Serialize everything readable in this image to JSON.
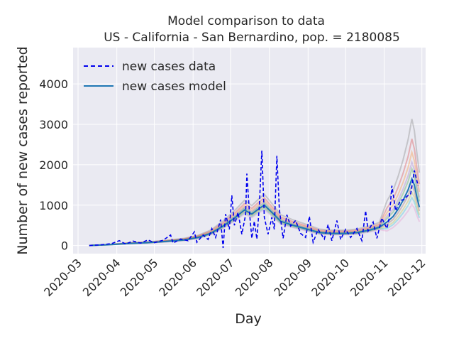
{
  "chart_data": {
    "type": "line",
    "title": "Model comparison to data",
    "subtitle": "US - California - San Bernardino, pop. = 2180085",
    "xlabel": "Day",
    "ylabel": "Number of new cases reported",
    "x_range": [
      "2020-02-26",
      "2020-12-04"
    ],
    "ylim": [
      -200,
      4900
    ],
    "grid": true,
    "legend_position": "top-left",
    "x_ticks": [
      "2020-03",
      "2020-04",
      "2020-05",
      "2020-06",
      "2020-07",
      "2020-08",
      "2020-09",
      "2020-10",
      "2020-11",
      "2020-12"
    ],
    "y_ticks": [
      0,
      1000,
      2000,
      3000,
      4000
    ],
    "series": [
      {
        "name": "new cases data",
        "style": "dashed",
        "color": "#0000ee",
        "points": [
          [
            "2020-03-10",
            0
          ],
          [
            "2020-03-20",
            20
          ],
          [
            "2020-03-28",
            50
          ],
          [
            "2020-04-03",
            120
          ],
          [
            "2020-04-08",
            40
          ],
          [
            "2020-04-14",
            110
          ],
          [
            "2020-04-20",
            60
          ],
          [
            "2020-04-26",
            140
          ],
          [
            "2020-05-01",
            70
          ],
          [
            "2020-05-08",
            130
          ],
          [
            "2020-05-14",
            260
          ],
          [
            "2020-05-16",
            60
          ],
          [
            "2020-05-22",
            160
          ],
          [
            "2020-05-28",
            120
          ],
          [
            "2020-06-02",
            340
          ],
          [
            "2020-06-04",
            80
          ],
          [
            "2020-06-09",
            260
          ],
          [
            "2020-06-13",
            150
          ],
          [
            "2020-06-16",
            420
          ],
          [
            "2020-06-19",
            200
          ],
          [
            "2020-06-23",
            640
          ],
          [
            "2020-06-25",
            -60
          ],
          [
            "2020-06-27",
            780
          ],
          [
            "2020-06-30",
            400
          ],
          [
            "2020-07-02",
            1240
          ],
          [
            "2020-07-04",
            500
          ],
          [
            "2020-07-07",
            820
          ],
          [
            "2020-07-10",
            280
          ],
          [
            "2020-07-13",
            760
          ],
          [
            "2020-07-14",
            1780
          ],
          [
            "2020-07-16",
            850
          ],
          [
            "2020-07-18",
            180
          ],
          [
            "2020-07-20",
            600
          ],
          [
            "2020-07-22",
            160
          ],
          [
            "2020-07-24",
            980
          ],
          [
            "2020-07-26",
            2350
          ],
          [
            "2020-07-28",
            700
          ],
          [
            "2020-07-31",
            280
          ],
          [
            "2020-08-03",
            700
          ],
          [
            "2020-08-05",
            400
          ],
          [
            "2020-08-07",
            2220
          ],
          [
            "2020-08-09",
            900
          ],
          [
            "2020-08-12",
            180
          ],
          [
            "2020-08-15",
            760
          ],
          [
            "2020-08-18",
            480
          ],
          [
            "2020-08-22",
            620
          ],
          [
            "2020-08-26",
            300
          ],
          [
            "2020-08-30",
            200
          ],
          [
            "2020-09-02",
            720
          ],
          [
            "2020-09-05",
            80
          ],
          [
            "2020-09-09",
            400
          ],
          [
            "2020-09-14",
            160
          ],
          [
            "2020-09-17",
            520
          ],
          [
            "2020-09-20",
            120
          ],
          [
            "2020-09-24",
            620
          ],
          [
            "2020-09-27",
            150
          ],
          [
            "2020-10-01",
            400
          ],
          [
            "2020-10-05",
            200
          ],
          [
            "2020-10-10",
            420
          ],
          [
            "2020-10-14",
            120
          ],
          [
            "2020-10-17",
            860
          ],
          [
            "2020-10-19",
            360
          ],
          [
            "2020-10-23",
            580
          ],
          [
            "2020-10-26",
            180
          ],
          [
            "2020-10-30",
            680
          ],
          [
            "2020-11-03",
            420
          ],
          [
            "2020-11-05",
            700
          ],
          [
            "2020-11-07",
            1480
          ],
          [
            "2020-11-10",
            860
          ],
          [
            "2020-11-14",
            1120
          ],
          [
            "2020-11-17",
            1140
          ],
          [
            "2020-11-19",
            1220
          ],
          [
            "2020-11-22",
            1280
          ],
          [
            "2020-11-25",
            1860
          ],
          [
            "2020-11-28",
            1480
          ]
        ]
      },
      {
        "name": "new cases model",
        "style": "solid",
        "color": "#1f77b4",
        "points": [
          [
            "2020-03-10",
            0
          ],
          [
            "2020-03-25",
            20
          ],
          [
            "2020-04-10",
            50
          ],
          [
            "2020-04-25",
            70
          ],
          [
            "2020-05-10",
            100
          ],
          [
            "2020-05-25",
            140
          ],
          [
            "2020-06-05",
            200
          ],
          [
            "2020-06-15",
            300
          ],
          [
            "2020-06-25",
            480
          ],
          [
            "2020-07-05",
            700
          ],
          [
            "2020-07-12",
            880
          ],
          [
            "2020-07-18",
            780
          ],
          [
            "2020-07-24",
            920
          ],
          [
            "2020-07-28",
            1000
          ],
          [
            "2020-08-03",
            820
          ],
          [
            "2020-08-10",
            600
          ],
          [
            "2020-08-20",
            500
          ],
          [
            "2020-09-01",
            400
          ],
          [
            "2020-09-10",
            320
          ],
          [
            "2020-09-20",
            300
          ],
          [
            "2020-10-01",
            300
          ],
          [
            "2020-10-10",
            320
          ],
          [
            "2020-10-20",
            380
          ],
          [
            "2020-10-28",
            450
          ],
          [
            "2020-11-03",
            580
          ],
          [
            "2020-11-08",
            720
          ],
          [
            "2020-11-12",
            900
          ],
          [
            "2020-11-16",
            1120
          ],
          [
            "2020-11-20",
            1380
          ],
          [
            "2020-11-23",
            1650
          ],
          [
            "2020-11-25",
            1500
          ],
          [
            "2020-11-27",
            1200
          ],
          [
            "2020-11-29",
            950
          ]
        ]
      }
    ]
  }
}
